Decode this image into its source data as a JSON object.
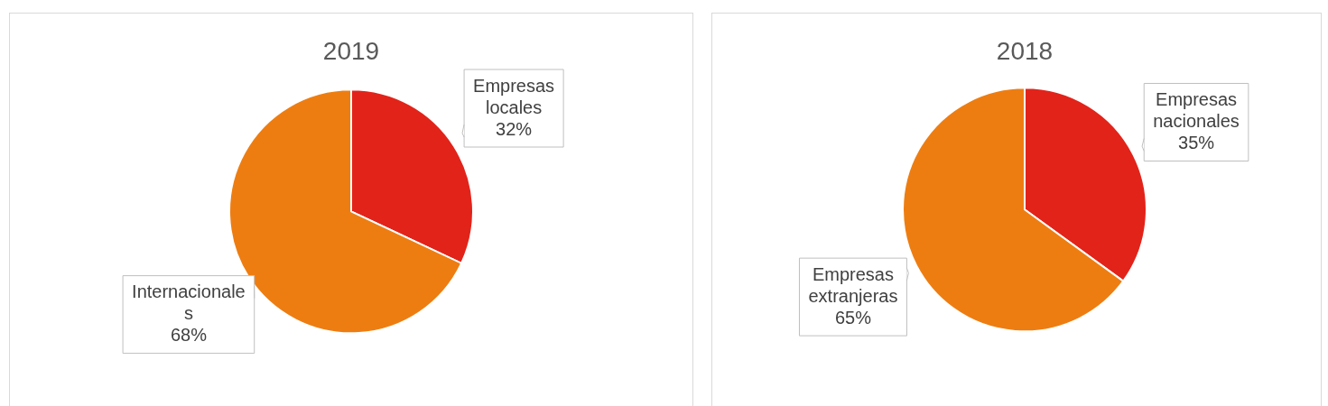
{
  "chart_data": [
    {
      "type": "pie",
      "title": "2019",
      "categories": [
        "Empresas locales",
        "Internacionales"
      ],
      "values": [
        32,
        68
      ],
      "colors": [
        "#e2231a",
        "#ee7d11"
      ],
      "value_labels": [
        "32%",
        "68%"
      ]
    },
    {
      "type": "pie",
      "title": "2018",
      "categories": [
        "Empresas nacionales",
        "Empresas extranjeras"
      ],
      "values": [
        35,
        65
      ],
      "colors": [
        "#e2231a",
        "#ee7d11"
      ],
      "value_labels": [
        "35%",
        "65%"
      ]
    }
  ]
}
